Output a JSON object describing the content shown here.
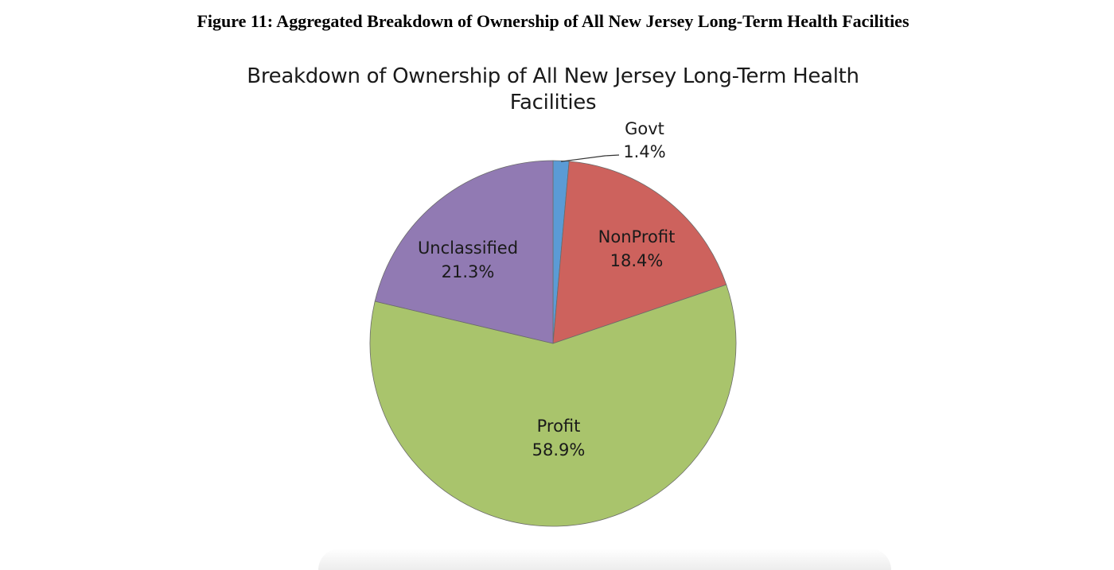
{
  "figure_caption": "Figure 11: Aggregated Breakdown of Ownership of All New Jersey Long-Term Health Facilities",
  "chart_data": {
    "type": "pie",
    "title": "Breakdown of Ownership of All New Jersey Long-Term Health Facilities",
    "slices": [
      {
        "label": "Govt",
        "value": 1.4,
        "value_label": "1.4%",
        "color": "#5B9BD5"
      },
      {
        "label": "NonProfit",
        "value": 18.4,
        "value_label": "18.4%",
        "color": "#CD625D"
      },
      {
        "label": "Profit",
        "value": 58.9,
        "value_label": "58.9%",
        "color": "#A9C46C"
      },
      {
        "label": "Unclassified",
        "value": 21.3,
        "value_label": "21.3%",
        "color": "#917AB3"
      }
    ],
    "start_angle": "12 o'clock",
    "direction": "clockwise",
    "legend": "none",
    "data_labels": "category and percent"
  }
}
